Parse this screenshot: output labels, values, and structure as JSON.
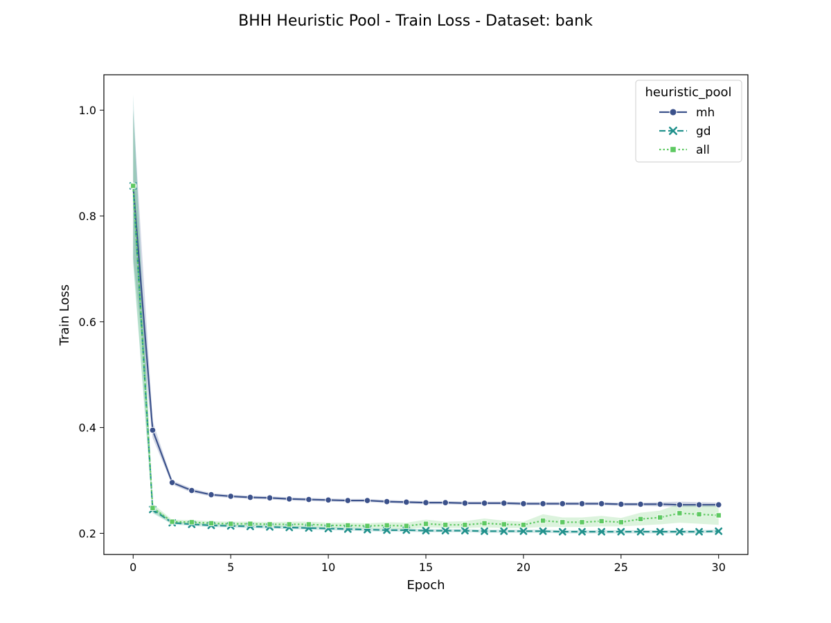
{
  "chart_data": {
    "type": "line",
    "title": "BHH Heuristic Pool - Train Loss - Dataset: bank",
    "xlabel": "Epoch",
    "ylabel": "Train Loss",
    "xlim": [
      -1.5,
      31.5
    ],
    "ylim": [
      0.16,
      1.067
    ],
    "xticks": [
      0,
      5,
      10,
      15,
      20,
      25,
      30
    ],
    "yticks": [
      0.2,
      0.4,
      0.6,
      0.8,
      1.0
    ],
    "xtick_labels": [
      "0",
      "5",
      "10",
      "15",
      "20",
      "25",
      "30"
    ],
    "ytick_labels": [
      "0.2",
      "0.4",
      "0.6",
      "0.8",
      "1.0"
    ],
    "grid": false,
    "legend": {
      "title": "heuristic_pool",
      "position": "top-right"
    },
    "x": [
      0,
      1,
      2,
      3,
      4,
      5,
      6,
      7,
      8,
      9,
      10,
      11,
      12,
      13,
      14,
      15,
      16,
      17,
      18,
      19,
      20,
      21,
      22,
      23,
      24,
      25,
      26,
      27,
      28,
      29,
      30
    ],
    "series": [
      {
        "name": "mh",
        "color": "#3b518b",
        "band_color": "#3b518b",
        "marker": "circle",
        "dash": "solid",
        "values": [
          0.857,
          0.395,
          0.296,
          0.281,
          0.273,
          0.27,
          0.268,
          0.267,
          0.265,
          0.264,
          0.263,
          0.262,
          0.262,
          0.26,
          0.259,
          0.258,
          0.258,
          0.257,
          0.257,
          0.257,
          0.256,
          0.256,
          0.256,
          0.256,
          0.256,
          0.255,
          0.255,
          0.255,
          0.254,
          0.254,
          0.254
        ],
        "lower": [
          0.72,
          0.38,
          0.292,
          0.277,
          0.27,
          0.267,
          0.265,
          0.264,
          0.262,
          0.261,
          0.26,
          0.259,
          0.259,
          0.257,
          0.256,
          0.255,
          0.255,
          0.254,
          0.254,
          0.254,
          0.253,
          0.253,
          0.253,
          0.253,
          0.253,
          0.252,
          0.252,
          0.251,
          0.25,
          0.25,
          0.25
        ],
        "upper": [
          1.0,
          0.412,
          0.3,
          0.285,
          0.276,
          0.273,
          0.271,
          0.27,
          0.268,
          0.267,
          0.266,
          0.265,
          0.265,
          0.263,
          0.262,
          0.261,
          0.261,
          0.26,
          0.26,
          0.26,
          0.259,
          0.259,
          0.259,
          0.259,
          0.259,
          0.258,
          0.258,
          0.259,
          0.26,
          0.259,
          0.258
        ]
      },
      {
        "name": "gd",
        "color": "#21918c",
        "band_color": "#21918c",
        "marker": "x",
        "dash": "dashed",
        "values": [
          0.857,
          0.245,
          0.22,
          0.217,
          0.215,
          0.214,
          0.213,
          0.212,
          0.211,
          0.21,
          0.209,
          0.208,
          0.207,
          0.206,
          0.206,
          0.205,
          0.205,
          0.205,
          0.204,
          0.204,
          0.204,
          0.204,
          0.203,
          0.203,
          0.203,
          0.203,
          0.203,
          0.203,
          0.203,
          0.203,
          0.204
        ],
        "lower": [
          0.71,
          0.238,
          0.217,
          0.214,
          0.212,
          0.211,
          0.21,
          0.209,
          0.208,
          0.207,
          0.206,
          0.205,
          0.204,
          0.203,
          0.203,
          0.202,
          0.202,
          0.202,
          0.201,
          0.201,
          0.201,
          0.201,
          0.2,
          0.2,
          0.2,
          0.2,
          0.2,
          0.2,
          0.2,
          0.2,
          0.201
        ],
        "upper": [
          1.03,
          0.252,
          0.223,
          0.22,
          0.218,
          0.217,
          0.216,
          0.215,
          0.214,
          0.213,
          0.212,
          0.211,
          0.21,
          0.209,
          0.209,
          0.208,
          0.208,
          0.208,
          0.207,
          0.207,
          0.207,
          0.207,
          0.206,
          0.206,
          0.206,
          0.206,
          0.206,
          0.206,
          0.206,
          0.206,
          0.207
        ]
      },
      {
        "name": "all",
        "color": "#5ec962",
        "band_color": "#5ec962",
        "marker": "square",
        "dash": "dotted",
        "values": [
          0.857,
          0.248,
          0.222,
          0.221,
          0.219,
          0.218,
          0.218,
          0.217,
          0.217,
          0.217,
          0.215,
          0.215,
          0.214,
          0.215,
          0.214,
          0.218,
          0.216,
          0.216,
          0.219,
          0.217,
          0.216,
          0.224,
          0.221,
          0.221,
          0.223,
          0.221,
          0.227,
          0.23,
          0.238,
          0.236,
          0.234
        ],
        "lower": [
          0.72,
          0.24,
          0.218,
          0.217,
          0.215,
          0.214,
          0.214,
          0.213,
          0.212,
          0.212,
          0.21,
          0.21,
          0.209,
          0.209,
          0.208,
          0.211,
          0.21,
          0.21,
          0.211,
          0.21,
          0.21,
          0.212,
          0.212,
          0.212,
          0.213,
          0.213,
          0.215,
          0.217,
          0.22,
          0.218,
          0.216
        ],
        "upper": [
          1.0,
          0.256,
          0.226,
          0.225,
          0.223,
          0.222,
          0.222,
          0.221,
          0.222,
          0.222,
          0.22,
          0.22,
          0.219,
          0.221,
          0.22,
          0.226,
          0.222,
          0.223,
          0.228,
          0.224,
          0.222,
          0.236,
          0.23,
          0.23,
          0.233,
          0.229,
          0.239,
          0.243,
          0.256,
          0.254,
          0.252
        ]
      }
    ]
  }
}
